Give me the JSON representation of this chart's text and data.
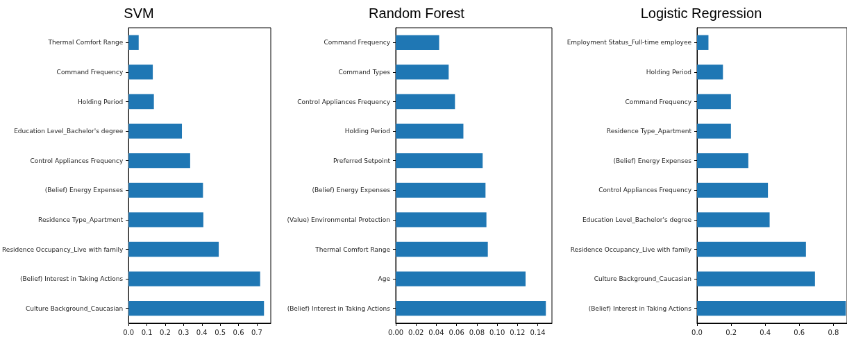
{
  "chart_data": [
    {
      "type": "bar",
      "orientation": "horizontal",
      "title": "SVM",
      "categories": [
        "Thermal Comfort Range",
        "Command Frequency",
        "Holding Period",
        "Education Level_Bachelor's degree",
        "Control Appliances Frequency",
        "(Belief) Energy Expenses",
        "Residence Type_Apartment",
        "Residence Occupancy_Live with family",
        "(Belief) Interest in Taking Actions",
        "Culture Background_Caucasian"
      ],
      "values": [
        0.055,
        0.132,
        0.138,
        0.291,
        0.336,
        0.406,
        0.408,
        0.492,
        0.718,
        0.739
      ],
      "color": "#1f77b4",
      "xlim": [
        0,
        0.776
      ],
      "xticks": [
        {
          "value": 0,
          "label": "0.0"
        },
        {
          "value": 0.1,
          "label": "0.1"
        },
        {
          "value": 0.2,
          "label": "0.2"
        },
        {
          "value": 0.3,
          "label": "0.3"
        },
        {
          "value": 0.4,
          "label": "0.4"
        },
        {
          "value": 0.5,
          "label": "0.5"
        },
        {
          "value": 0.6,
          "label": "0.6"
        },
        {
          "value": 0.7,
          "label": "0.7"
        }
      ]
    },
    {
      "type": "bar",
      "orientation": "horizontal",
      "title": "Random Forest",
      "categories": [
        "Command Frequency",
        "Command Types",
        "Control Appliances Frequency",
        "Holding Period",
        "Preferred Setpoint",
        "(Belief) Energy Expenses",
        "(Value) Environmental Protection",
        "Thermal Comfort Range",
        "Age",
        "(Belief) Interest in Taking Actions"
      ],
      "values": [
        0.0428,
        0.0522,
        0.0584,
        0.0667,
        0.0857,
        0.0885,
        0.0894,
        0.0908,
        0.128,
        0.148
      ],
      "color": "#1f77b4",
      "xlim": [
        0,
        0.154
      ],
      "xticks": [
        {
          "value": 0,
          "label": "0.00"
        },
        {
          "value": 0.02,
          "label": "0.02"
        },
        {
          "value": 0.04,
          "label": "0.04"
        },
        {
          "value": 0.06,
          "label": "0.06"
        },
        {
          "value": 0.08,
          "label": "0.08"
        },
        {
          "value": 0.1,
          "label": "0.10"
        },
        {
          "value": 0.12,
          "label": "0.12"
        },
        {
          "value": 0.14,
          "label": "0.14"
        }
      ]
    },
    {
      "type": "bar",
      "orientation": "horizontal",
      "title": "Logistic Regression",
      "categories": [
        "Employment Status_Full-time employee",
        "Holding Period",
        "Command Frequency",
        "Residence Type_Apartment",
        "(Belief) Energy Expenses",
        "Control Appliances Frequency",
        "Education Level_Bachelor's degree",
        "Residence Occupancy_Live with family",
        "Culture Background_Caucasian",
        "(Belief) Interest in Taking Actions"
      ],
      "values": [
        0.067,
        0.152,
        0.199,
        0.199,
        0.301,
        0.416,
        0.426,
        0.639,
        0.692,
        0.873
      ],
      "color": "#1f77b4",
      "xlim": [
        0,
        0.88
      ],
      "xticks": [
        {
          "value": 0,
          "label": "0.0"
        },
        {
          "value": 0.2,
          "label": "0.2"
        },
        {
          "value": 0.4,
          "label": "0.4"
        },
        {
          "value": 0.6,
          "label": "0.6"
        },
        {
          "value": 0.8,
          "label": "0.8"
        }
      ]
    }
  ]
}
